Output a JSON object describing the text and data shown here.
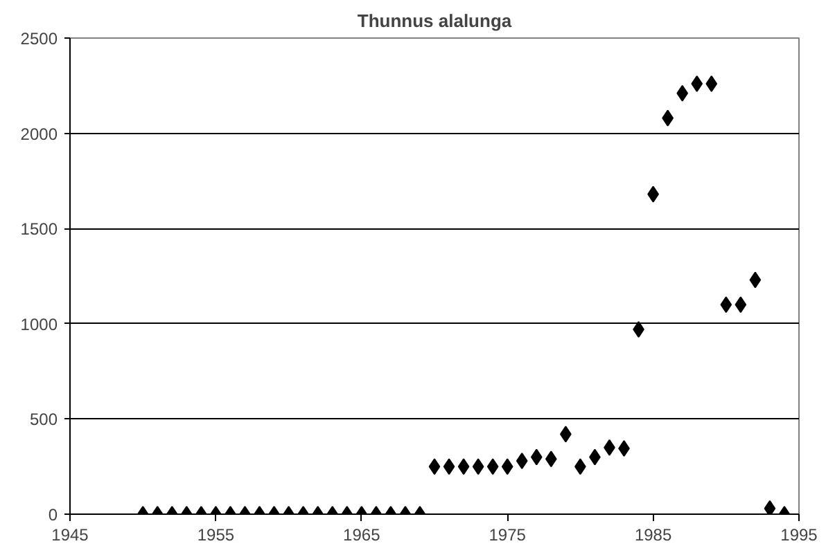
{
  "chart_data": {
    "type": "scatter",
    "title": "Thunnus alalunga",
    "x": [
      1950,
      1951,
      1952,
      1953,
      1954,
      1955,
      1956,
      1957,
      1958,
      1959,
      1960,
      1961,
      1962,
      1963,
      1964,
      1965,
      1966,
      1967,
      1968,
      1969,
      1970,
      1971,
      1972,
      1973,
      1974,
      1975,
      1976,
      1977,
      1978,
      1979,
      1980,
      1981,
      1982,
      1983,
      1984,
      1985,
      1986,
      1987,
      1988,
      1989,
      1990,
      1991,
      1992,
      1993,
      1994
    ],
    "values": [
      0,
      0,
      0,
      0,
      0,
      0,
      0,
      0,
      0,
      0,
      0,
      0,
      0,
      0,
      0,
      0,
      0,
      0,
      0,
      0,
      250,
      250,
      250,
      250,
      250,
      250,
      280,
      300,
      290,
      420,
      250,
      300,
      350,
      345,
      970,
      1680,
      2080,
      2210,
      2260,
      2260,
      1100,
      1100,
      1230,
      30,
      0
    ],
    "color": "#000000",
    "marker": "diamond",
    "xlim": [
      1945,
      1995
    ],
    "xticks": [
      1945,
      1955,
      1965,
      1975,
      1985,
      1995
    ],
    "ylim": [
      0,
      2500
    ],
    "yticks": [
      0,
      500,
      1000,
      1500,
      2000,
      2500
    ],
    "grid": "y"
  }
}
